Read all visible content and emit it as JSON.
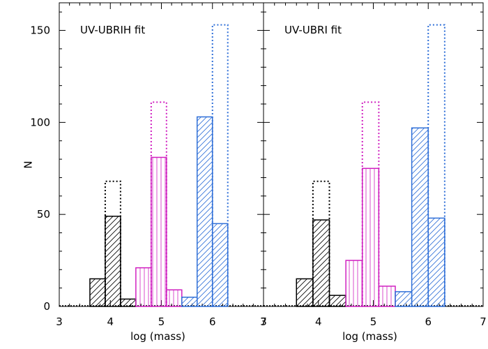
{
  "colors": {
    "low": "#000000",
    "mid": "#d020c0",
    "high": "#2f6fd8"
  },
  "chart_data": {
    "type": "bar",
    "ylabel": "N",
    "ylim": [
      0,
      165
    ],
    "y_ticks": [
      0,
      50,
      100,
      150
    ],
    "panels": [
      {
        "title": "UV-UBRIH fit",
        "xlabel": "log (mass)",
        "xlim": [
          3,
          7
        ],
        "x_ticks": [
          3,
          4,
          5,
          6,
          7
        ],
        "series": [
          {
            "group": "low",
            "style": "solid-hatched",
            "hatch": "diagonal",
            "bins": [
              [
                3.6,
                3.9,
                15
              ],
              [
                3.9,
                4.2,
                49
              ],
              [
                4.2,
                4.5,
                4
              ]
            ]
          },
          {
            "group": "low",
            "style": "dotted",
            "bins": [
              [
                3.9,
                4.2,
                68
              ]
            ]
          },
          {
            "group": "mid",
            "style": "solid-hatched",
            "hatch": "vertical",
            "bins": [
              [
                4.5,
                4.8,
                21
              ],
              [
                4.8,
                5.1,
                81
              ],
              [
                5.1,
                5.4,
                9
              ]
            ]
          },
          {
            "group": "mid",
            "style": "dotted",
            "bins": [
              [
                4.8,
                5.1,
                111
              ]
            ]
          },
          {
            "group": "high",
            "style": "solid-hatched",
            "hatch": "diagonal",
            "bins": [
              [
                5.4,
                5.7,
                5
              ],
              [
                5.7,
                6.0,
                103
              ],
              [
                6.0,
                6.3,
                45
              ]
            ]
          },
          {
            "group": "high",
            "style": "dotted",
            "bins": [
              [
                6.0,
                6.3,
                153
              ]
            ]
          }
        ]
      },
      {
        "title": "UV-UBRI fit",
        "xlabel": "log (mass)",
        "xlim": [
          3,
          7
        ],
        "x_ticks": [
          3,
          4,
          5,
          6,
          7
        ],
        "series": [
          {
            "group": "low",
            "style": "solid-hatched",
            "hatch": "diagonal",
            "bins": [
              [
                3.6,
                3.9,
                15
              ],
              [
                3.9,
                4.2,
                47
              ],
              [
                4.2,
                4.5,
                6
              ]
            ]
          },
          {
            "group": "low",
            "style": "dotted",
            "bins": [
              [
                3.9,
                4.2,
                68
              ]
            ]
          },
          {
            "group": "mid",
            "style": "solid-hatched",
            "hatch": "vertical",
            "bins": [
              [
                4.5,
                4.8,
                25
              ],
              [
                4.8,
                5.1,
                75
              ],
              [
                5.1,
                5.4,
                11
              ]
            ]
          },
          {
            "group": "mid",
            "style": "dotted",
            "bins": [
              [
                4.8,
                5.1,
                111
              ]
            ]
          },
          {
            "group": "high",
            "style": "solid-hatched",
            "hatch": "diagonal",
            "bins": [
              [
                5.4,
                5.7,
                8
              ],
              [
                5.7,
                6.0,
                97
              ],
              [
                6.0,
                6.3,
                48
              ]
            ]
          },
          {
            "group": "high",
            "style": "dotted",
            "bins": [
              [
                6.0,
                6.3,
                153
              ]
            ]
          }
        ]
      }
    ]
  }
}
